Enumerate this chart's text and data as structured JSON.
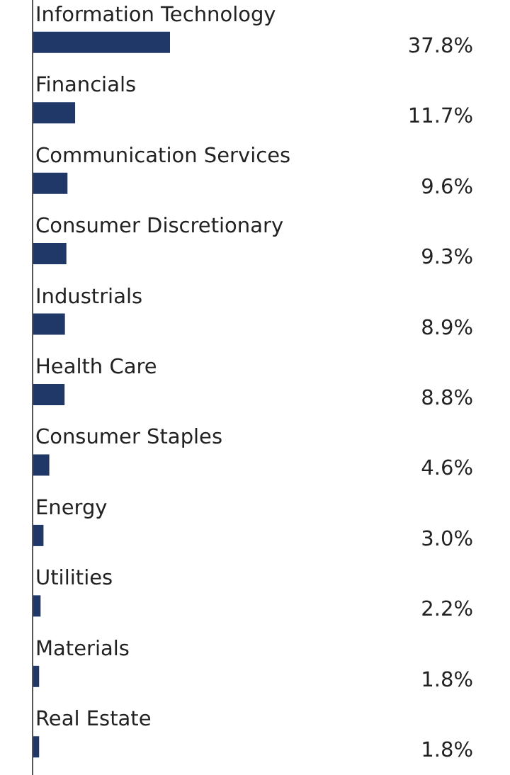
{
  "chart_data": {
    "type": "bar",
    "orientation": "horizontal",
    "categories": [
      "Information Technology",
      "Financials",
      "Communication Services",
      "Consumer Discretionary",
      "Industrials",
      "Health Care",
      "Consumer Staples",
      "Energy",
      "Utilities",
      "Materials",
      "Real Estate"
    ],
    "values": [
      37.8,
      11.7,
      9.6,
      9.3,
      8.9,
      8.8,
      4.6,
      3.0,
      2.2,
      1.8,
      1.8
    ],
    "value_labels": [
      "37.8%",
      "11.7%",
      "9.6%",
      "9.3%",
      "8.9%",
      "8.8%",
      "4.6%",
      "3.0%",
      "2.2%",
      "1.8%",
      "1.8%"
    ],
    "color": "#1f3868"
  }
}
